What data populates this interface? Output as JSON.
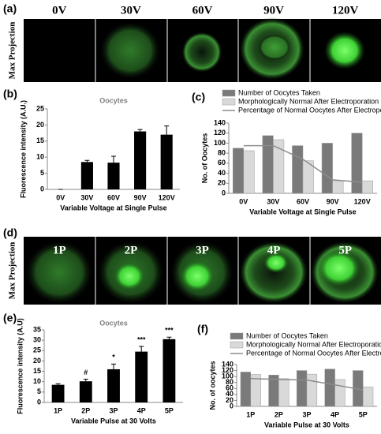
{
  "panel_labels": [
    "(a)",
    "(b)",
    "(c)",
    "(d)",
    "(e)",
    "(f)"
  ],
  "image_rows": [
    {
      "side_label": "Max Projection",
      "labels": [
        "0V",
        "30V",
        "60V",
        "90V",
        "120V"
      ]
    },
    {
      "side_label": "Max Projection",
      "labels": [
        "1P",
        "2P",
        "3P",
        "4P",
        "5P"
      ]
    }
  ],
  "chart_data": [
    {
      "type": "bar",
      "title": "Oocytes",
      "y_label": "Fluorescence intensity (A.U.)",
      "x_label": "Variable Voltage at Single Pulse",
      "categories": [
        "0V",
        "30V",
        "60V",
        "90V",
        "120V"
      ],
      "values": [
        0,
        8.5,
        8.3,
        18,
        17
      ],
      "errors": [
        0,
        0.5,
        2,
        0.6,
        2.7
      ],
      "color": "#000000",
      "ylim": [
        0,
        25
      ],
      "yticks": [
        0,
        5,
        10,
        15,
        20,
        25
      ]
    },
    {
      "type": "combo",
      "y_label": "No. of Oocytes",
      "x_label": "Variable Voltage at Single Pulse",
      "categories": [
        "0V",
        "30V",
        "60V",
        "90V",
        "120V"
      ],
      "ylim": [
        0,
        140
      ],
      "yticks": [
        0,
        20,
        40,
        60,
        80,
        100,
        120,
        140
      ],
      "series": [
        {
          "name": "Number of Oocytes Taken",
          "mark": "bar",
          "color": "#7a7a7a",
          "values": [
            90,
            115,
            95,
            100,
            120
          ]
        },
        {
          "name": "Morphologically Normal After Electroporation",
          "mark": "bar",
          "color": "#d9d9d9",
          "values": [
            85,
            107,
            65,
            25,
            25
          ]
        },
        {
          "name": "Percentage of Normal Oocytes After Electroporation",
          "mark": "line",
          "color": "#8c8c8c",
          "values": [
            95,
            95,
            68,
            27,
            22
          ]
        }
      ]
    },
    {
      "type": "bar",
      "title": "Oocytes",
      "y_label": "Fluorescence intensity (A.U)",
      "x_label": "Variable Pulse at 30 Volts",
      "categories": [
        "1P",
        "2P",
        "3P",
        "4P",
        "5P"
      ],
      "values": [
        8.5,
        10.2,
        16,
        24.5,
        30.5
      ],
      "errors": [
        0.5,
        1,
        2.5,
        2.5,
        1
      ],
      "significance": [
        null,
        "#",
        "*",
        "***",
        "***"
      ],
      "color": "#000000",
      "ylim": [
        0,
        35
      ],
      "yticks": [
        0,
        5,
        10,
        15,
        20,
        25,
        30,
        35
      ]
    },
    {
      "type": "combo",
      "y_label": "No. of oocytes",
      "x_label": "Variable Pulse at 30 Volts",
      "categories": [
        "1P",
        "2P",
        "3P",
        "4P",
        "5P"
      ],
      "ylim": [
        0,
        140
      ],
      "yticks": [
        0,
        20,
        40,
        60,
        80,
        100,
        120,
        140
      ],
      "series": [
        {
          "name": "Number of Oocytes Taken",
          "mark": "bar",
          "color": "#7a7a7a",
          "values": [
            115,
            105,
            120,
            125,
            120
          ]
        },
        {
          "name": "Morphologically Normal After Electroporation",
          "mark": "bar",
          "color": "#d9d9d9",
          "values": [
            107,
            93,
            108,
            90,
            65
          ]
        },
        {
          "name": "Percentage of Normal Oocytes After Electroporation",
          "mark": "line",
          "color": "#8c8c8c",
          "values": [
            93,
            90,
            88,
            72,
            55
          ]
        }
      ]
    }
  ]
}
